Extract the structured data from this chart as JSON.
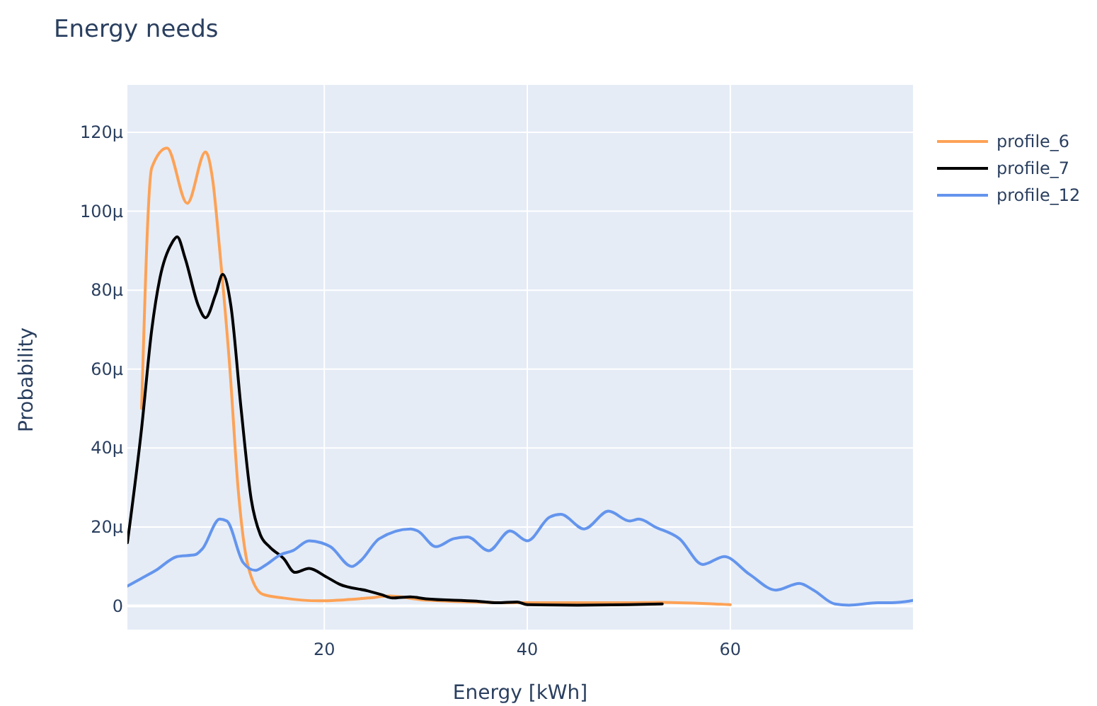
{
  "chart_data": {
    "type": "line",
    "title": "Energy needs",
    "xlabel": "Energy [kWh]",
    "ylabel": "Probability",
    "xlim": [
      0.6,
      78
    ],
    "xticks": [
      20,
      40,
      60
    ],
    "ylim": [
      -6,
      132
    ],
    "yticks": [
      {
        "value": 0,
        "label": "0"
      },
      {
        "value": 20,
        "label": "20μ"
      },
      {
        "value": 40,
        "label": "40μ"
      },
      {
        "value": 60,
        "label": "60μ"
      },
      {
        "value": 80,
        "label": "80μ"
      },
      {
        "value": 100,
        "label": "100μ"
      },
      {
        "value": 120,
        "label": "120μ"
      }
    ],
    "grid": true,
    "legend": "top right",
    "line_style": "solid",
    "marker": "none",
    "series": [
      {
        "name": "profile_6",
        "color": "#fda256",
        "x": [
          2,
          3.0,
          4.5,
          6.5,
          8.3,
          9.0,
          9.7,
          10.7,
          11.5,
          12.5,
          13.9,
          16,
          19.5,
          24.3,
          26.4,
          29.9,
          40,
          50,
          53,
          60
        ],
        "values": [
          50,
          111,
          116,
          102,
          115,
          108,
          90,
          60,
          30,
          10,
          3,
          2,
          1.3,
          2,
          2.5,
          1.5,
          0.8,
          0.8,
          0.9,
          0.3
        ]
      },
      {
        "name": "profile_7",
        "color": "#000000",
        "x": [
          0.6,
          2,
          3,
          3.8,
          5,
          5.5,
          6.3,
          7.6,
          8.3,
          9.3,
          10,
          10.8,
          11.8,
          12.8,
          13.7,
          14.6,
          16,
          17.1,
          18.5,
          20.1,
          21.5,
          24.3,
          25.7,
          26.7,
          28.5,
          30,
          35,
          37,
          39,
          40,
          45,
          50,
          53.3
        ],
        "values": [
          16,
          45,
          70,
          83,
          92,
          93.5,
          88,
          76,
          73,
          79,
          84,
          76,
          50,
          27,
          18,
          15,
          12,
          8.5,
          9.5,
          7.5,
          5.5,
          3.8,
          2.8,
          2,
          2.3,
          1.8,
          1.2,
          0.8,
          1,
          0.3,
          0.2,
          0.3,
          0.5
        ]
      },
      {
        "name": "profile_12",
        "color": "#6495ed",
        "x": [
          0.6,
          2,
          3.4,
          5.5,
          7.3,
          8,
          9.7,
          10.4,
          12,
          13.2,
          14.3,
          15.7,
          16.9,
          18.5,
          19.7,
          20.6,
          22.7,
          23.6,
          25.4,
          28.5,
          29.2,
          31,
          32.7,
          34.1,
          36.2,
          38.3,
          40,
          42.2,
          43.3,
          45.6,
          48,
          50.1,
          51,
          52.6,
          55,
          57.3,
          59.4,
          61.9,
          64.5,
          66.8,
          68.2,
          70.3,
          71.7,
          74.5,
          75.9,
          78
        ],
        "values": [
          5,
          7,
          9,
          12.5,
          13,
          14.5,
          22,
          21.5,
          11,
          9,
          10.5,
          13,
          14,
          16.5,
          16,
          15,
          10,
          11.5,
          17,
          19.5,
          19,
          15,
          17,
          17.5,
          14,
          19,
          16.5,
          22.5,
          23.2,
          19.5,
          24,
          21.5,
          22,
          20,
          17,
          10.5,
          12.5,
          8,
          4,
          5.7,
          4,
          0.5,
          0.2,
          0.8,
          0.8,
          1.4
        ]
      }
    ]
  }
}
